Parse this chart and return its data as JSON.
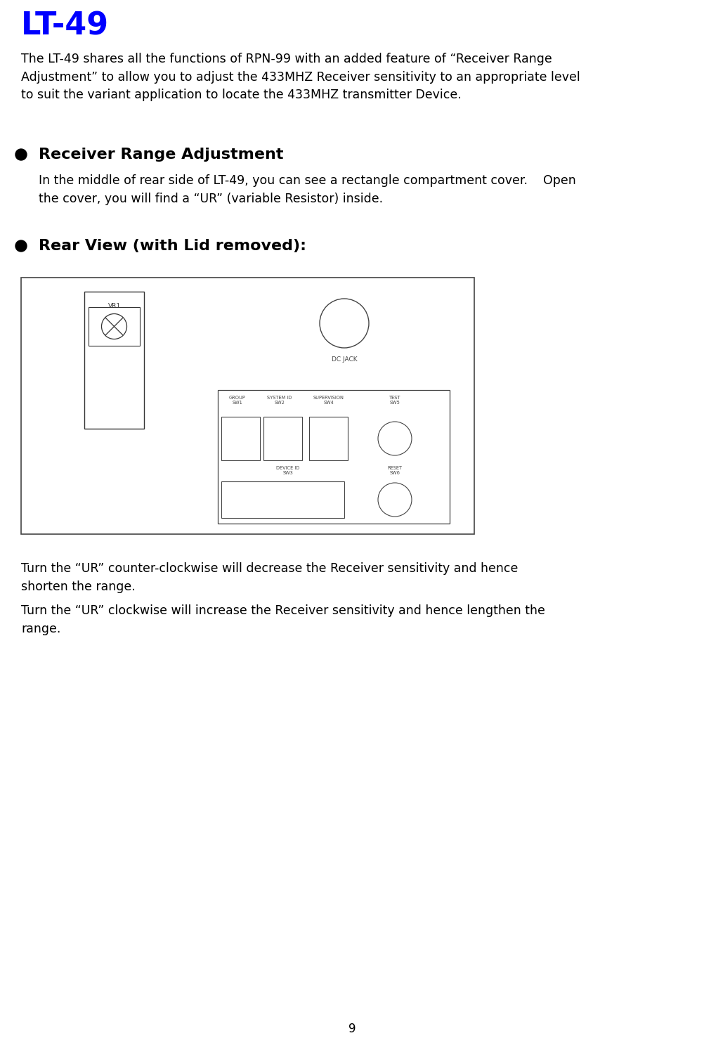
{
  "title": "LT-49",
  "title_color": "#0000FF",
  "title_fontsize": 32,
  "bg_color": "#FFFFFF",
  "body_text_color": "#000000",
  "body_fontsize": 12.5,
  "intro_text": "The LT-49 shares all the functions of RPN-99 with an added feature of “Receiver Range\nAdjustment” to allow you to adjust the 433MHZ Receiver sensitivity to an appropriate level\nto suit the variant application to locate the 433MHZ transmitter Device.",
  "bullet1_heading": "Receiver Range Adjustment",
  "bullet1_heading_fontsize": 16,
  "bullet1_body": "In the middle of rear side of LT-49, you can see a rectangle compartment cover.    Open\nthe cover, you will find a “UR” (variable Resistor) inside.",
  "bullet2_heading": "Rear View (with Lid removed):",
  "bullet2_heading_fontsize": 16,
  "footer_text1": "Turn the “UR” counter-clockwise will decrease the Receiver sensitivity and hence\nshorten the range.",
  "footer_text2": "Turn the “UR” clockwise will increase the Receiver sensitivity and hence lengthen the\nrange.",
  "page_number": "9"
}
